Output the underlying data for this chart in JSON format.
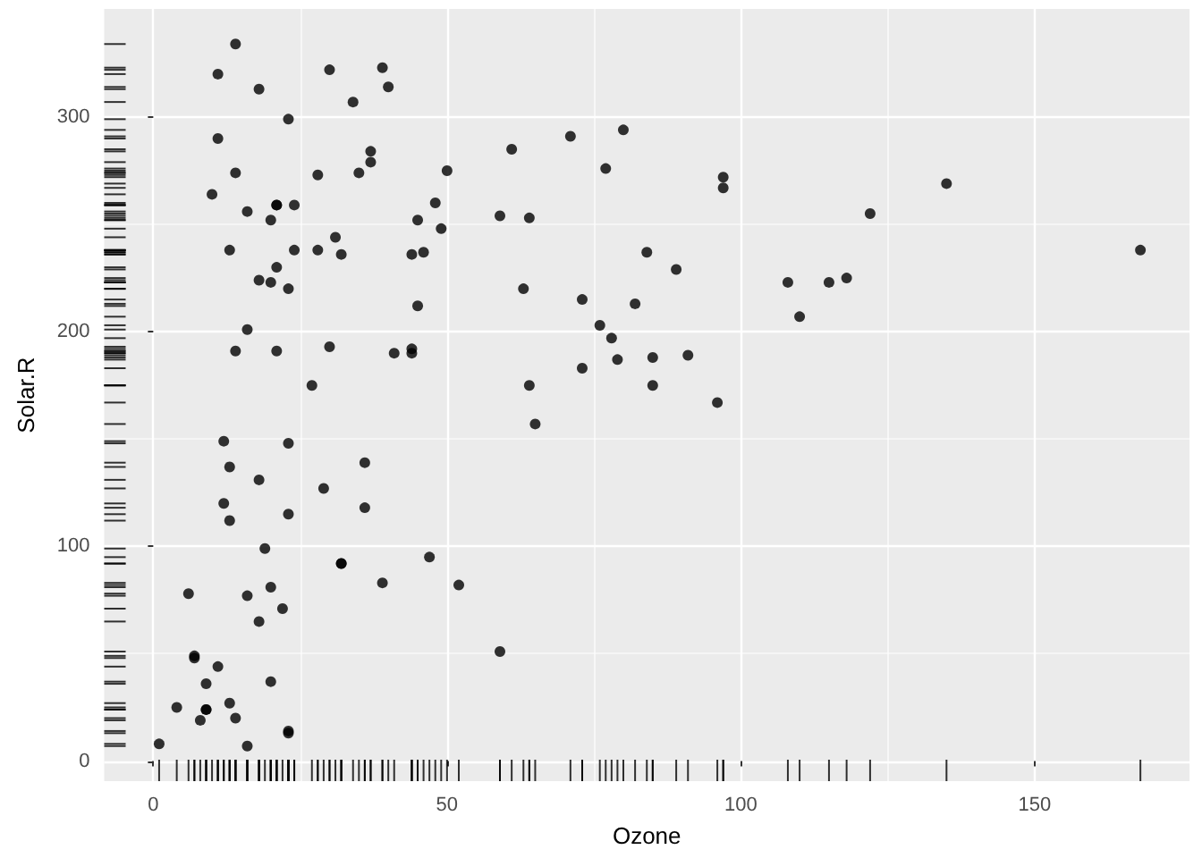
{
  "chart_data": {
    "type": "scatter",
    "xlabel": "Ozone",
    "ylabel": "Solar.R",
    "x": [
      41,
      36,
      12,
      18,
      23,
      19,
      8,
      16,
      11,
      14,
      18,
      14,
      34,
      6,
      30,
      11,
      1,
      11,
      4,
      32,
      23,
      45,
      115,
      37,
      29,
      71,
      39,
      23,
      21,
      37,
      20,
      12,
      13,
      135,
      49,
      32,
      64,
      40,
      77,
      97,
      97,
      85,
      10,
      27,
      7,
      48,
      35,
      61,
      79,
      63,
      16,
      80,
      108,
      20,
      52,
      82,
      50,
      64,
      59,
      39,
      9,
      16,
      122,
      89,
      110,
      44,
      28,
      65,
      22,
      59,
      23,
      31,
      44,
      21,
      9,
      45,
      168,
      73,
      76,
      118,
      84,
      85,
      96,
      78,
      73,
      91,
      47,
      32,
      20,
      23,
      21,
      24,
      44,
      21,
      28,
      9,
      13,
      46,
      18,
      13,
      24,
      16,
      13,
      23,
      36,
      7,
      14,
      30,
      14,
      18,
      20
    ],
    "values": [
      190,
      118,
      149,
      313,
      299,
      99,
      19,
      256,
      290,
      274,
      65,
      334,
      307,
      78,
      322,
      44,
      8,
      320,
      25,
      92,
      13,
      252,
      223,
      279,
      127,
      291,
      323,
      148,
      191,
      284,
      37,
      120,
      137,
      269,
      248,
      236,
      175,
      314,
      276,
      267,
      272,
      175,
      264,
      175,
      48,
      260,
      274,
      285,
      187,
      220,
      7,
      294,
      223,
      81,
      82,
      213,
      275,
      253,
      254,
      83,
      24,
      77,
      255,
      229,
      207,
      192,
      273,
      157,
      71,
      51,
      115,
      244,
      190,
      259,
      36,
      212,
      238,
      215,
      203,
      225,
      237,
      188,
      167,
      197,
      183,
      189,
      95,
      92,
      252,
      220,
      230,
      259,
      236,
      259,
      238,
      24,
      112,
      237,
      224,
      27,
      238,
      201,
      238,
      14,
      139,
      49,
      20,
      193,
      191,
      131,
      223
    ],
    "color": "#000000",
    "marker": "circle",
    "grid": true,
    "xlim": [
      -8.35,
      176.35
    ],
    "xticks": [
      0,
      50,
      100,
      150
    ],
    "ylim": [
      -9.35,
      350.35
    ],
    "yticks": [
      0,
      100,
      200,
      300
    ]
  }
}
